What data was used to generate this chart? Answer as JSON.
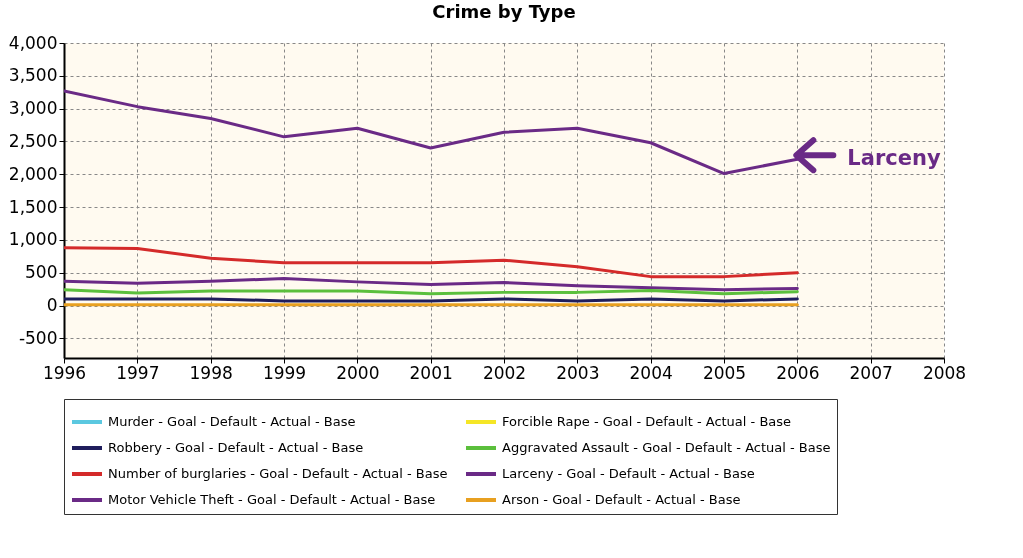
{
  "chart_data": {
    "type": "line",
    "title": "Crime by Type",
    "x": [
      1996,
      1997,
      1998,
      1999,
      2000,
      2001,
      2002,
      2003,
      2004,
      2005,
      2006
    ],
    "series": [
      {
        "name": "Murder - Goal - Default - Actual - Base",
        "color": "#5bc8e0",
        "values": [
          null,
          null,
          null,
          null,
          null,
          null,
          null,
          null,
          null,
          null,
          null
        ]
      },
      {
        "name": "Robbery - Goal - Default - Actual - Base",
        "color": "#1f1d5c",
        "values": [
          100,
          100,
          100,
          70,
          70,
          70,
          100,
          70,
          100,
          70,
          100
        ]
      },
      {
        "name": "Number of burglaries - Goal - Default - Actual - Base",
        "color": "#d42a2a",
        "values": [
          880,
          870,
          720,
          650,
          650,
          650,
          690,
          590,
          440,
          440,
          500
        ]
      },
      {
        "name": "Motor Vehicle Theft - Goal - Default - Actual - Base",
        "color": "#6a2a86",
        "values": [
          370,
          340,
          370,
          410,
          360,
          320,
          350,
          300,
          270,
          240,
          260
        ]
      },
      {
        "name": "Forcible Rape - Goal - Default - Actual - Base",
        "color": "#f5e626",
        "values": [
          null,
          null,
          null,
          null,
          null,
          null,
          null,
          null,
          null,
          null,
          null
        ]
      },
      {
        "name": "Aggravated Assault - Goal - Default - Actual - Base",
        "color": "#5bbf3c",
        "values": [
          240,
          190,
          220,
          220,
          220,
          180,
          200,
          200,
          230,
          180,
          210
        ]
      },
      {
        "name": "Larceny - Goal - Default - Actual - Base",
        "color": "#6a2a86",
        "values": [
          3270,
          3030,
          2850,
          2570,
          2700,
          2400,
          2640,
          2700,
          2480,
          2010,
          2230
        ]
      },
      {
        "name": "Arson - Goal - Default - Actual - Base",
        "color": "#e8a020",
        "values": [
          10,
          10,
          10,
          10,
          10,
          10,
          10,
          10,
          10,
          10,
          10
        ]
      }
    ],
    "xlim": [
      1996,
      2008
    ],
    "xticks": [
      1996,
      1997,
      1998,
      1999,
      2000,
      2001,
      2002,
      2003,
      2004,
      2005,
      2006,
      2007,
      2008
    ],
    "ylim": [
      -800,
      4000
    ],
    "yticks": [
      {
        "value": -500,
        "label": "-500"
      },
      0,
      500,
      {
        "value": 1000,
        "label": "1,000"
      },
      {
        "value": 1500,
        "label": "1,500"
      },
      {
        "value": 2000,
        "label": "2,000"
      },
      {
        "value": 2500,
        "label": "2,500"
      },
      {
        "value": 3000,
        "label": "3,000"
      },
      {
        "value": 3500,
        "label": "3,500"
      },
      {
        "value": 4000,
        "label": "4,000"
      }
    ],
    "grid": true,
    "legend": "bottom",
    "line_style": "solid",
    "annotations": [
      {
        "text": "Larceny",
        "x": 2006,
        "y": 2230
      }
    ]
  }
}
